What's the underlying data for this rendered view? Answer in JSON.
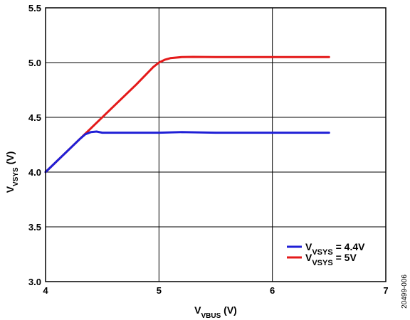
{
  "chart_data": {
    "type": "line",
    "xlabel": {
      "main": "V",
      "sub": "VBUS",
      "unit": " (V)"
    },
    "ylabel": {
      "main": "V",
      "sub": "VSYS",
      "unit": " (V)"
    },
    "xlim": [
      4,
      7
    ],
    "ylim": [
      3.0,
      5.5
    ],
    "xticks": [
      "4",
      "5",
      "6",
      "7"
    ],
    "yticks": [
      "3.0",
      "3.5",
      "4.0",
      "4.5",
      "5.0",
      "5.5"
    ],
    "xtick_values": [
      4,
      5,
      6,
      7
    ],
    "ytick_values": [
      3.0,
      3.5,
      4.0,
      4.5,
      5.0,
      5.5
    ],
    "grid": true,
    "legend_position": "bottom-right",
    "series": [
      {
        "name": {
          "main": "V",
          "sub": "VSYS",
          "rest": " = 4.4V"
        },
        "color": "#1f1fd6",
        "x": [
          4.0,
          4.1,
          4.2,
          4.3,
          4.35,
          4.4,
          4.45,
          4.5,
          4.7,
          5.0,
          5.2,
          5.5,
          6.0,
          6.5
        ],
        "y": [
          4.0,
          4.1,
          4.2,
          4.3,
          4.345,
          4.365,
          4.37,
          4.36,
          4.36,
          4.36,
          4.365,
          4.36,
          4.36,
          4.36
        ]
      },
      {
        "name": {
          "main": "V",
          "sub": "VSYS",
          "rest": " = 5V"
        },
        "color": "#e41a1a",
        "x": [
          4.0,
          4.2,
          4.4,
          4.6,
          4.8,
          4.95,
          5.0,
          5.05,
          5.1,
          5.2,
          5.3,
          5.5,
          6.0,
          6.5
        ],
        "y": [
          4.0,
          4.2,
          4.4,
          4.6,
          4.8,
          4.96,
          5.0,
          5.025,
          5.04,
          5.05,
          5.052,
          5.05,
          5.05,
          5.05
        ]
      }
    ]
  },
  "figure_id": "20499-006"
}
